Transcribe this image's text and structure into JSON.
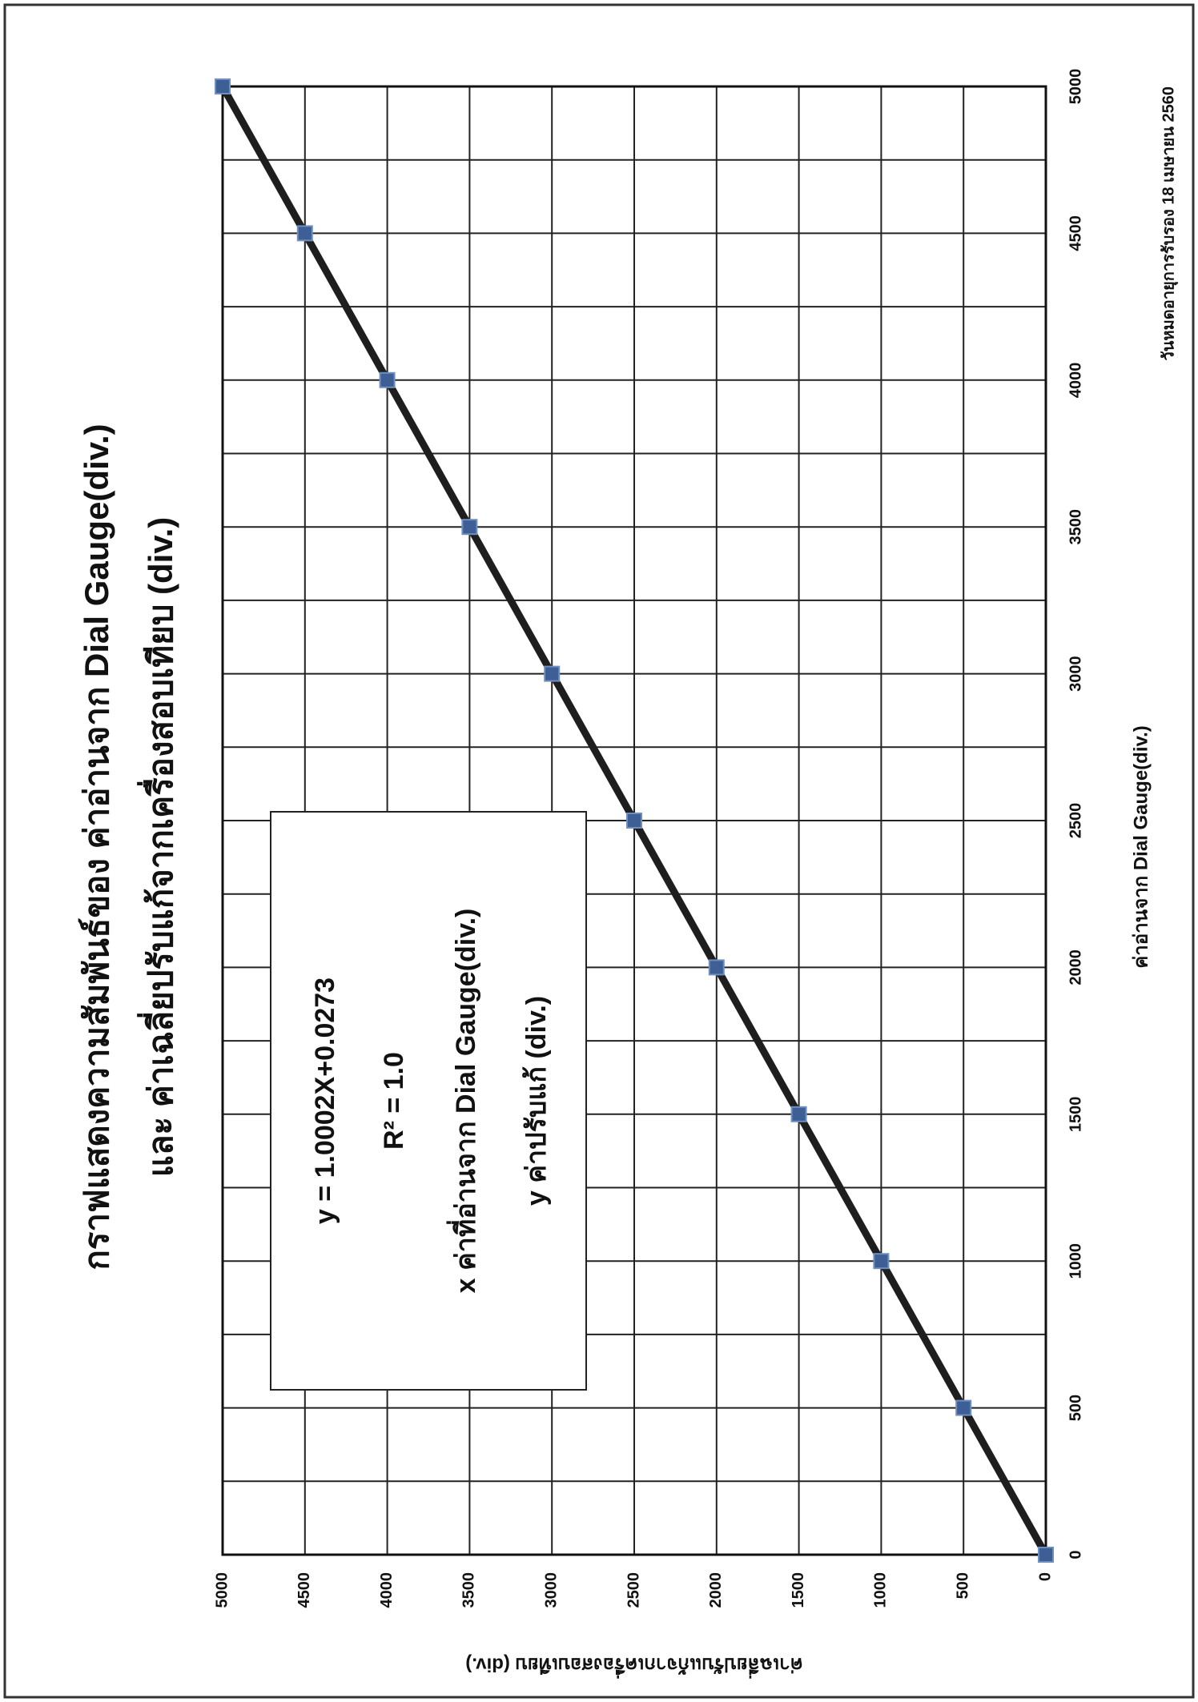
{
  "chart_data": {
    "type": "line",
    "title": "กราฟแสดงความสัมพันธ์ของ ค่าอ่านจาก Dial Gauge(div.)",
    "subtitle": "และ ค่าเฉลี่ยปรับแก้จากเครื่องสอบเทียบ (div.)",
    "xlabel": "ค่าอ่านจาก Dial Gauge(div.)",
    "ylabel": "ค่าเฉลี่ยปรับแก้จากเครื่องสอบเทียบ (div.)",
    "annotations": [
      "y = 1.0002X+0.0273",
      "R² = 1.0",
      "x ค่าที่อ่านจาก Dial Gauge(div.)",
      "y ค่าปรับแก้ (div.)"
    ],
    "footnote": "วันหมดอายุการรับรอง  18  เมษายน 2560",
    "x": [
      0,
      500,
      1000,
      1500,
      2000,
      2500,
      3000,
      3500,
      4000,
      4500,
      5000
    ],
    "values": [
      0,
      500,
      1000,
      1500,
      2000,
      2500,
      3000,
      3500,
      4000,
      4500,
      5000
    ],
    "color": "#1e1e1e",
    "marker_color": "#3d5f95",
    "xlim": [
      0,
      5000
    ],
    "ylim": [
      0,
      5000
    ],
    "xticks": [
      0,
      500,
      1000,
      1500,
      2000,
      2500,
      3000,
      3500,
      4000,
      4500,
      5000
    ],
    "x_minor_gridlines": [
      250,
      750,
      1250,
      1750,
      2250,
      2750,
      3250,
      3750,
      4250,
      4750
    ],
    "yticks": [
      0,
      500,
      1000,
      1500,
      2000,
      2500,
      3000,
      3500,
      4000,
      4500,
      5000
    ],
    "grid": true
  }
}
